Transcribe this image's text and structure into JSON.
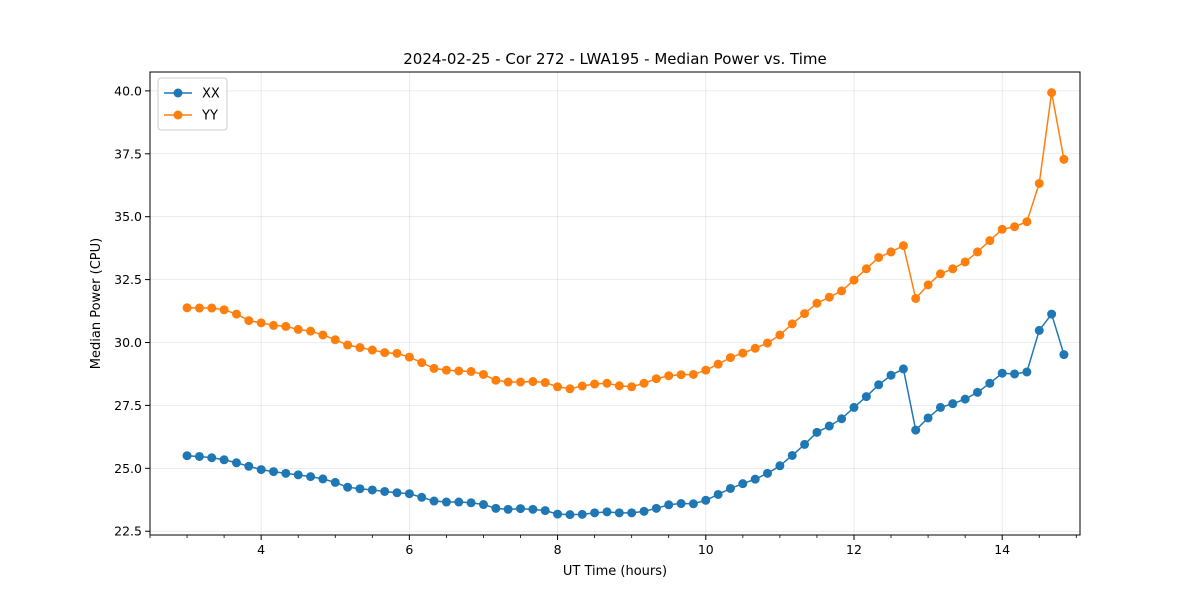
{
  "chart_data": {
    "type": "line",
    "title": "2024-02-25 - Cor 272 - LWA195 - Median Power vs. Time",
    "xlabel": "UT Time (hours)",
    "ylabel": "Median Power (CPU)",
    "xlim": [
      2.5,
      15.05
    ],
    "ylim": [
      22.35,
      40.75
    ],
    "x_ticks": [
      4,
      6,
      8,
      10,
      12,
      14
    ],
    "x_tick_labels": [
      "4",
      "6",
      "8",
      "10",
      "12",
      "14"
    ],
    "x_minor_step": 0.5,
    "y_ticks": [
      22.5,
      25.0,
      27.5,
      30.0,
      32.5,
      35.0,
      37.5,
      40.0
    ],
    "y_tick_labels": [
      "22.5",
      "25.0",
      "27.5",
      "30.0",
      "32.5",
      "35.0",
      "37.5",
      "40.0"
    ],
    "grid": true,
    "legend_position": "top-left",
    "x": [
      3.0,
      3.167,
      3.333,
      3.5,
      3.667,
      3.833,
      4.0,
      4.167,
      4.333,
      4.5,
      4.667,
      4.833,
      5.0,
      5.167,
      5.333,
      5.5,
      5.667,
      5.833,
      6.0,
      6.167,
      6.333,
      6.5,
      6.667,
      6.833,
      7.0,
      7.167,
      7.333,
      7.5,
      7.667,
      7.833,
      8.0,
      8.167,
      8.333,
      8.5,
      8.667,
      8.833,
      9.0,
      9.167,
      9.333,
      9.5,
      9.667,
      9.833,
      10.0,
      10.167,
      10.333,
      10.5,
      10.667,
      10.833,
      11.0,
      11.167,
      11.333,
      11.5,
      11.667,
      11.833,
      12.0,
      12.167,
      12.333,
      12.5,
      12.667,
      12.833,
      13.0,
      13.167,
      13.333,
      13.5,
      13.667,
      13.833,
      14.0,
      14.167,
      14.333,
      14.5,
      14.667,
      14.833
    ],
    "series": [
      {
        "name": "XX",
        "color": "#1f77b4",
        "values": [
          25.5,
          25.47,
          25.42,
          25.34,
          25.22,
          25.08,
          24.95,
          24.87,
          24.8,
          24.74,
          24.67,
          24.58,
          24.44,
          24.25,
          24.19,
          24.14,
          24.08,
          24.03,
          23.99,
          23.85,
          23.7,
          23.66,
          23.66,
          23.63,
          23.56,
          23.41,
          23.37,
          23.4,
          23.37,
          23.32,
          23.18,
          23.16,
          23.17,
          23.23,
          23.27,
          23.23,
          23.23,
          23.29,
          23.41,
          23.55,
          23.6,
          23.59,
          23.73,
          23.96,
          24.2,
          24.39,
          24.57,
          24.8,
          25.1,
          25.51,
          25.95,
          26.43,
          26.68,
          26.97,
          27.42,
          27.85,
          28.32,
          28.7,
          28.95,
          26.52,
          27.0,
          27.42,
          27.57,
          27.75,
          28.02,
          28.38,
          28.78,
          28.75,
          28.83,
          30.48,
          31.13,
          29.52
        ]
      },
      {
        "name": "YY",
        "color": "#ff7f0e",
        "values": [
          31.38,
          31.37,
          31.37,
          31.3,
          31.13,
          30.87,
          30.78,
          30.68,
          30.64,
          30.52,
          30.45,
          30.3,
          30.11,
          29.9,
          29.8,
          29.7,
          29.6,
          29.57,
          29.42,
          29.2,
          28.97,
          28.9,
          28.87,
          28.85,
          28.73,
          28.5,
          28.43,
          28.43,
          28.45,
          28.41,
          28.24,
          28.16,
          28.27,
          28.35,
          28.38,
          28.28,
          28.24,
          28.38,
          28.56,
          28.68,
          28.72,
          28.73,
          28.9,
          29.14,
          29.4,
          29.58,
          29.77,
          29.98,
          30.3,
          30.74,
          31.15,
          31.56,
          31.8,
          32.05,
          32.48,
          32.93,
          33.38,
          33.6,
          33.85,
          31.75,
          32.29,
          32.73,
          32.93,
          33.2,
          33.6,
          34.05,
          34.5,
          34.6,
          34.8,
          36.32,
          39.93,
          37.28
        ]
      }
    ]
  }
}
